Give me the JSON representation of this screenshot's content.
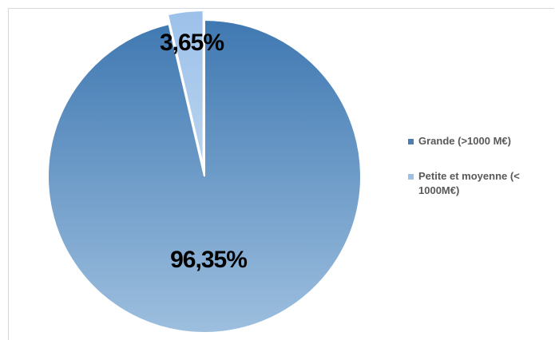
{
  "chart_data": {
    "type": "pie",
    "categories": [
      "Grande (>1000 M€)",
      "Petite et moyenne (< 1000M€)"
    ],
    "values": [
      96.35,
      3.65
    ],
    "data_labels": [
      "96,35%",
      "3,65%"
    ],
    "colors": [
      "#4a7fb5",
      "#9dc0e6"
    ],
    "exploded": [
      false,
      true
    ],
    "start_angle_deg": 0,
    "legend_position": "right",
    "title": ""
  },
  "legend": {
    "items": [
      {
        "label": "Grande (>1000 M€)",
        "color": "#4a7fb5"
      },
      {
        "label": "Petite et moyenne (< 1000M€)",
        "color": "#9dc0e6"
      }
    ]
  }
}
